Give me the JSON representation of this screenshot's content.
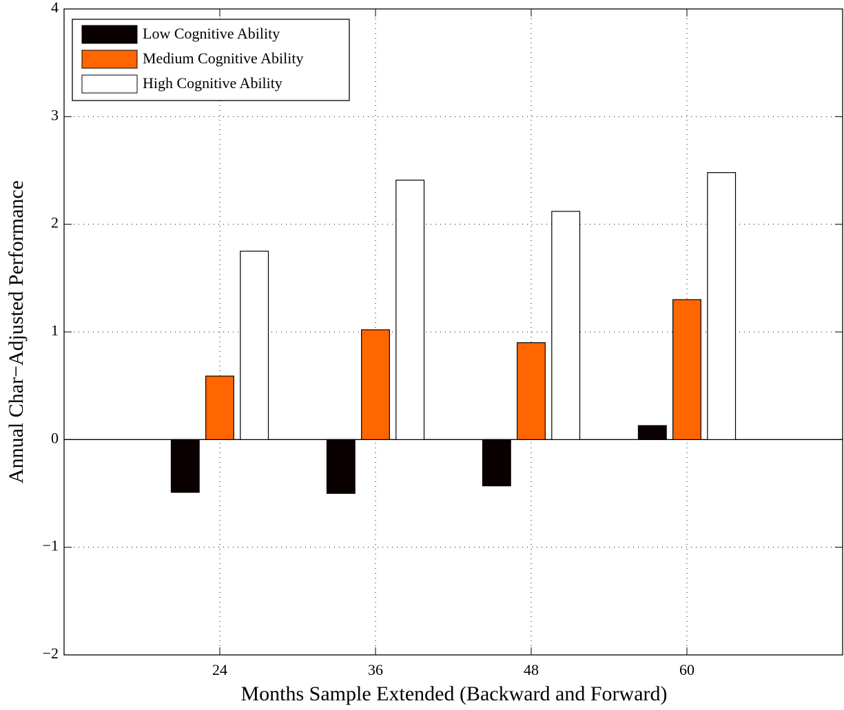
{
  "chart_data": {
    "type": "bar",
    "xlabel": "Months Sample Extended (Backward and Forward)",
    "ylabel": "Annual Char−Adjusted Performance",
    "categories": [
      "24",
      "36",
      "48",
      "60"
    ],
    "series": [
      {
        "name": "Low Cognitive Ability",
        "color": "#0a0000",
        "values": [
          -0.49,
          -0.5,
          -0.43,
          0.13
        ]
      },
      {
        "name": "Medium Cognitive Ability",
        "color": "#ff6600",
        "values": [
          0.59,
          1.02,
          0.9,
          1.3
        ]
      },
      {
        "name": "High Cognitive Ability",
        "color": "#ffffff",
        "values": [
          1.75,
          2.41,
          2.12,
          2.48
        ]
      }
    ],
    "ylim": [
      -2,
      4
    ],
    "yticks": [
      {
        "value": -2,
        "label": "−2"
      },
      {
        "value": -1,
        "label": "−1"
      },
      0,
      1,
      2,
      3,
      4
    ],
    "grid": true,
    "legend": "upper-left"
  }
}
